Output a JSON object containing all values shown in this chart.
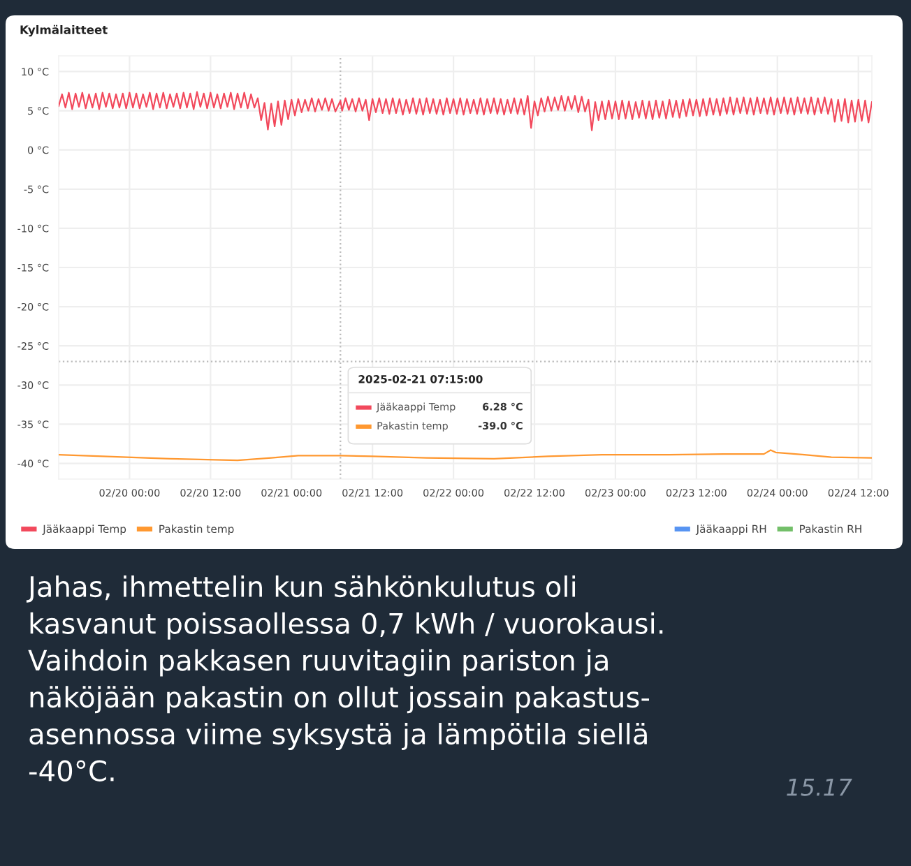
{
  "chart_data": {
    "type": "line",
    "title": "Kylmälaitteet",
    "x": [
      "2025-02-19T13:30",
      "2025-02-19T14:00",
      "2025-02-19T14:30",
      "2025-02-19T15:00",
      "2025-02-19T15:30",
      "2025-02-19T16:00",
      "2025-02-19T16:30",
      "2025-02-19T17:00",
      "2025-02-19T17:30",
      "2025-02-19T18:00",
      "2025-02-19T18:30",
      "2025-02-19T19:00",
      "2025-02-19T19:30",
      "2025-02-19T20:00",
      "2025-02-19T20:30",
      "2025-02-19T21:00",
      "2025-02-19T21:30",
      "2025-02-19T22:00",
      "2025-02-19T22:30",
      "2025-02-19T23:00",
      "2025-02-19T23:30",
      "2025-02-20T00:00",
      "2025-02-20T00:30",
      "2025-02-20T01:00",
      "2025-02-20T01:30",
      "2025-02-20T02:00",
      "2025-02-20T02:30",
      "2025-02-20T03:00",
      "2025-02-20T03:30",
      "2025-02-20T04:00",
      "2025-02-20T04:30",
      "2025-02-20T05:00",
      "2025-02-20T05:30",
      "2025-02-20T06:00",
      "2025-02-20T06:30",
      "2025-02-20T07:00",
      "2025-02-20T07:30",
      "2025-02-20T08:00",
      "2025-02-20T08:30",
      "2025-02-20T09:00",
      "2025-02-20T09:30",
      "2025-02-20T10:00",
      "2025-02-20T10:30",
      "2025-02-20T11:00",
      "2025-02-20T11:30",
      "2025-02-20T12:00",
      "2025-02-20T12:30",
      "2025-02-20T13:00",
      "2025-02-20T13:30",
      "2025-02-20T14:00",
      "2025-02-20T14:30",
      "2025-02-20T15:00",
      "2025-02-20T15:30",
      "2025-02-20T16:00",
      "2025-02-20T16:30",
      "2025-02-20T17:00",
      "2025-02-20T17:30",
      "2025-02-20T18:00",
      "2025-02-20T18:30",
      "2025-02-20T19:00",
      "2025-02-20T19:30",
      "2025-02-20T20:00",
      "2025-02-20T20:30",
      "2025-02-20T21:00",
      "2025-02-20T21:30",
      "2025-02-20T22:00",
      "2025-02-20T22:30",
      "2025-02-20T23:00",
      "2025-02-20T23:30",
      "2025-02-21T00:00",
      "2025-02-21T00:30",
      "2025-02-21T01:00",
      "2025-02-21T01:30",
      "2025-02-21T02:00",
      "2025-02-21T02:30",
      "2025-02-21T03:00",
      "2025-02-21T03:30",
      "2025-02-21T04:00",
      "2025-02-21T04:30",
      "2025-02-21T05:00",
      "2025-02-21T05:30",
      "2025-02-21T06:00",
      "2025-02-21T06:30",
      "2025-02-21T07:15",
      "2025-02-21T07:30",
      "2025-02-21T08:00",
      "2025-02-21T08:30",
      "2025-02-21T09:00",
      "2025-02-21T09:30",
      "2025-02-21T10:00",
      "2025-02-21T10:30",
      "2025-02-21T11:00",
      "2025-02-21T11:30",
      "2025-02-21T12:00",
      "2025-02-21T12:30",
      "2025-02-21T13:00",
      "2025-02-21T13:30",
      "2025-02-21T14:00",
      "2025-02-21T14:30",
      "2025-02-21T15:00",
      "2025-02-21T15:30",
      "2025-02-21T16:00",
      "2025-02-21T16:30",
      "2025-02-21T17:00",
      "2025-02-21T17:30",
      "2025-02-21T18:00",
      "2025-02-21T18:30",
      "2025-02-21T19:00",
      "2025-02-21T19:30",
      "2025-02-21T20:00",
      "2025-02-21T20:30",
      "2025-02-21T21:00",
      "2025-02-21T21:30",
      "2025-02-21T22:00",
      "2025-02-21T22:30",
      "2025-02-21T23:00",
      "2025-02-21T23:30",
      "2025-02-22T00:00",
      "2025-02-22T00:30",
      "2025-02-22T01:00",
      "2025-02-22T01:30",
      "2025-02-22T02:00",
      "2025-02-22T02:30",
      "2025-02-22T03:00",
      "2025-02-22T03:30",
      "2025-02-22T04:00",
      "2025-02-22T04:30",
      "2025-02-22T05:00",
      "2025-02-22T05:30",
      "2025-02-22T06:00",
      "2025-02-22T06:30",
      "2025-02-22T07:00",
      "2025-02-22T07:30",
      "2025-02-22T08:00",
      "2025-02-22T08:30",
      "2025-02-22T09:00",
      "2025-02-22T09:30",
      "2025-02-22T10:00",
      "2025-02-22T10:30",
      "2025-02-22T11:00",
      "2025-02-22T11:30",
      "2025-02-22T12:00",
      "2025-02-22T12:30",
      "2025-02-22T13:00",
      "2025-02-22T13:30",
      "2025-02-22T14:00",
      "2025-02-22T14:30",
      "2025-02-22T15:00",
      "2025-02-22T15:30",
      "2025-02-22T16:00",
      "2025-02-22T16:30",
      "2025-02-22T17:00",
      "2025-02-22T17:30",
      "2025-02-22T18:00",
      "2025-02-22T18:30",
      "2025-02-22T19:00",
      "2025-02-22T19:30",
      "2025-02-22T20:00",
      "2025-02-22T20:30",
      "2025-02-22T21:00",
      "2025-02-22T21:30",
      "2025-02-22T22:00",
      "2025-02-22T22:30",
      "2025-02-22T23:00",
      "2025-02-22T23:30",
      "2025-02-23T00:00",
      "2025-02-23T00:30",
      "2025-02-23T01:00",
      "2025-02-23T01:30",
      "2025-02-23T02:00",
      "2025-02-23T02:30",
      "2025-02-23T03:00",
      "2025-02-23T03:30",
      "2025-02-23T04:00",
      "2025-02-23T04:30",
      "2025-02-23T05:00",
      "2025-02-23T05:30",
      "2025-02-23T06:00",
      "2025-02-23T06:30",
      "2025-02-23T07:00",
      "2025-02-23T07:30",
      "2025-02-23T08:00",
      "2025-02-23T08:30",
      "2025-02-23T09:00",
      "2025-02-23T09:30",
      "2025-02-23T10:00",
      "2025-02-23T10:30",
      "2025-02-23T11:00",
      "2025-02-23T11:30",
      "2025-02-23T12:00",
      "2025-02-23T12:30",
      "2025-02-23T13:00",
      "2025-02-23T13:30",
      "2025-02-23T14:00",
      "2025-02-23T14:30",
      "2025-02-23T15:00",
      "2025-02-23T15:30",
      "2025-02-23T16:00",
      "2025-02-23T16:30",
      "2025-02-23T17:00",
      "2025-02-23T17:30",
      "2025-02-23T18:00",
      "2025-02-23T18:30",
      "2025-02-23T19:00",
      "2025-02-23T19:30",
      "2025-02-23T20:00",
      "2025-02-23T20:30",
      "2025-02-23T21:00",
      "2025-02-23T21:30",
      "2025-02-23T22:00",
      "2025-02-23T22:30",
      "2025-02-23T23:00",
      "2025-02-23T23:30",
      "2025-02-24T00:00",
      "2025-02-24T00:30",
      "2025-02-24T01:00",
      "2025-02-24T01:30",
      "2025-02-24T02:00",
      "2025-02-24T02:30",
      "2025-02-24T03:00",
      "2025-02-24T03:30",
      "2025-02-24T04:00",
      "2025-02-24T04:30",
      "2025-02-24T05:00",
      "2025-02-24T05:30",
      "2025-02-24T06:00",
      "2025-02-24T06:30",
      "2025-02-24T07:00",
      "2025-02-24T07:30",
      "2025-02-24T08:00",
      "2025-02-24T08:30",
      "2025-02-24T09:00",
      "2025-02-24T09:30",
      "2025-02-24T10:00",
      "2025-02-24T10:30",
      "2025-02-24T11:00",
      "2025-02-24T11:30",
      "2025-02-24T12:00",
      "2025-02-24T12:30",
      "2025-02-24T13:00",
      "2025-02-24T13:30",
      "2025-02-24T14:00"
    ],
    "series": [
      {
        "name": "Jääkaappi Temp",
        "color": "#f2495c",
        "values": [
          5.6,
          7.1,
          5.4,
          7.3,
          5.2,
          7.2,
          5.5,
          7.3,
          5.3,
          7.1,
          5.4,
          7.2,
          5.2,
          7.3,
          5.5,
          7.2,
          5.3,
          7.1,
          5.4,
          7.2,
          5.3,
          7.3,
          5.4,
          7.2,
          5.3,
          7.1,
          5.5,
          7.3,
          5.2,
          7.2,
          5.4,
          7.3,
          5.3,
          7.1,
          5.5,
          7.2,
          5.3,
          7.3,
          5.4,
          7.2,
          5.2,
          7.4,
          5.5,
          7.2,
          5.3,
          7.3,
          5.4,
          7.1,
          5.3,
          7.2,
          5.5,
          7.3,
          5.2,
          7.2,
          5.4,
          7.3,
          5.3,
          7.1,
          5.4,
          6.6,
          3.8,
          6.0,
          2.6,
          5.9,
          3.0,
          6.2,
          3.2,
          6.3,
          3.9,
          6.4,
          4.4,
          6.5,
          4.8,
          6.4,
          5.0,
          6.6,
          4.9,
          6.5,
          5.1,
          6.6,
          5.0,
          6.5,
          4.9,
          6.28,
          5.0,
          6.6,
          5.1,
          6.5,
          4.9,
          6.6,
          5.0,
          6.4,
          3.8,
          6.5,
          4.8,
          6.6,
          4.7,
          6.5,
          4.6,
          6.6,
          4.7,
          6.5,
          4.5,
          6.4,
          4.7,
          6.6,
          4.6,
          6.5,
          4.5,
          6.6,
          4.7,
          6.5,
          4.6,
          6.4,
          4.5,
          6.6,
          4.7,
          6.5,
          4.6,
          6.6,
          4.5,
          6.5,
          4.7,
          6.4,
          4.6,
          6.6,
          4.5,
          6.5,
          4.7,
          6.6,
          4.6,
          6.5,
          4.5,
          6.4,
          4.7,
          6.6,
          4.6,
          6.5,
          4.5,
          6.9,
          2.8,
          6.2,
          4.4,
          6.6,
          4.9,
          6.8,
          5.0,
          6.7,
          5.1,
          6.9,
          5.0,
          6.8,
          5.2,
          6.9,
          4.8,
          6.8,
          4.9,
          6.4,
          2.5,
          6.1,
          3.8,
          6.2,
          3.9,
          6.3,
          4.0,
          6.2,
          3.9,
          6.3,
          4.0,
          6.2,
          3.9,
          6.1,
          4.1,
          6.3,
          4.0,
          6.2,
          3.9,
          6.3,
          4.1,
          6.2,
          4.0,
          6.4,
          4.2,
          6.3,
          4.1,
          6.4,
          4.3,
          6.5,
          4.4,
          6.4,
          4.3,
          6.5,
          4.4,
          6.6,
          4.5,
          6.5,
          4.4,
          6.6,
          4.6,
          6.7,
          4.5,
          6.6,
          4.7,
          6.7,
          4.6,
          6.6,
          4.5,
          6.7,
          4.7,
          6.6,
          4.6,
          6.7,
          4.5,
          6.6,
          4.7,
          6.7,
          4.6,
          6.6,
          4.5,
          6.7,
          4.7,
          6.6,
          4.6,
          6.7,
          4.5,
          6.6,
          4.7,
          6.7,
          4.6,
          6.5,
          3.6,
          6.4,
          3.7,
          6.5,
          3.5,
          6.3,
          3.6,
          6.4,
          3.7,
          6.3,
          3.5,
          6.1
        ]
      },
      {
        "name": "Pakastin temp",
        "color": "#ff9830",
        "x": [
          "2025-02-19T13:30",
          "2025-02-19T20:00",
          "2025-02-20T06:00",
          "2025-02-20T16:00",
          "2025-02-20T21:00",
          "2025-02-21T01:00",
          "2025-02-21T07:15",
          "2025-02-21T12:00",
          "2025-02-21T20:00",
          "2025-02-22T06:00",
          "2025-02-22T14:00",
          "2025-02-22T22:00",
          "2025-02-23T08:00",
          "2025-02-23T16:00",
          "2025-02-23T22:00",
          "2025-02-23T23:00",
          "2025-02-23T23:45",
          "2025-02-24T04:00",
          "2025-02-24T08:00",
          "2025-02-24T14:00"
        ],
        "values": [
          -38.9,
          -39.1,
          -39.4,
          -39.6,
          -39.3,
          -39.0,
          -39.0,
          -39.1,
          -39.3,
          -39.4,
          -39.1,
          -38.9,
          -38.9,
          -38.8,
          -38.8,
          -38.3,
          -38.6,
          -38.9,
          -39.2,
          -39.3
        ]
      },
      {
        "name": "Jääkaappi RH",
        "color": "#5794f2",
        "values": [
          null,
          null,
          null,
          null,
          null,
          null,
          null,
          null,
          null,
          null,
          null,
          null,
          null,
          null,
          null,
          null,
          null,
          null,
          null,
          null,
          null,
          null,
          null,
          null,
          null,
          null,
          null,
          null,
          null,
          null,
          null,
          null,
          null,
          null,
          null,
          null,
          null,
          null,
          null,
          null,
          null,
          null,
          null,
          null,
          null,
          null,
          null,
          null,
          null,
          null,
          null,
          null,
          null,
          null,
          null,
          null,
          null,
          null,
          null,
          null,
          null,
          null,
          null,
          null,
          null,
          null,
          null,
          null,
          null,
          null,
          null,
          null,
          null,
          null,
          null,
          null,
          null,
          null,
          null,
          null,
          null,
          null,
          null,
          null,
          null,
          null,
          null,
          null,
          null,
          null,
          null,
          null,
          null,
          null,
          null,
          null,
          null,
          null,
          null,
          null,
          null,
          null,
          null,
          null,
          null,
          null,
          null,
          null,
          null,
          null,
          null,
          null,
          null,
          null,
          null,
          null,
          null,
          null,
          null,
          null,
          null,
          null,
          null,
          null,
          null,
          null,
          null,
          null,
          null,
          null,
          null,
          null,
          null,
          null,
          null,
          null,
          null,
          null,
          null,
          null,
          null,
          null,
          null,
          null,
          null,
          null,
          null,
          null,
          null,
          null,
          null,
          null,
          null,
          null,
          null,
          null,
          null,
          null,
          null,
          null,
          null,
          null,
          null,
          null,
          null,
          null,
          null,
          null,
          null,
          null,
          null,
          null,
          null,
          null,
          null,
          null,
          null,
          null,
          null,
          null,
          null,
          null,
          null,
          null,
          null,
          null,
          null,
          null,
          null,
          null,
          null,
          null,
          null,
          null,
          null,
          null,
          null,
          null,
          null,
          null,
          null,
          null,
          null,
          null,
          null,
          null,
          null,
          null,
          null,
          null,
          null,
          null,
          null,
          null,
          null,
          null,
          null,
          null,
          null,
          null,
          null,
          null,
          null,
          null,
          null,
          null,
          null,
          null,
          null,
          null,
          null,
          null,
          null,
          null,
          null,
          null,
          null,
          null,
          null,
          null,
          null,
          null
        ]
      },
      {
        "name": "Pakastin RH",
        "color": "#73bf69",
        "values": [
          null,
          null,
          null,
          null,
          null,
          null,
          null,
          null,
          null,
          null,
          null,
          null,
          null,
          null,
          null,
          null,
          null,
          null,
          null,
          null,
          null,
          null,
          null,
          null,
          null,
          null,
          null,
          null,
          null,
          null,
          null,
          null,
          null,
          null,
          null,
          null,
          null,
          null,
          null,
          null,
          null,
          null,
          null,
          null,
          null,
          null,
          null,
          null,
          null,
          null,
          null,
          null,
          null,
          null,
          null,
          null,
          null,
          null,
          null,
          null,
          null,
          null,
          null,
          null,
          null,
          null,
          null,
          null,
          null,
          null,
          null,
          null,
          null,
          null,
          null,
          null,
          null,
          null,
          null,
          null,
          null,
          null,
          null,
          null,
          null,
          null,
          null,
          null,
          null,
          null,
          null,
          null,
          null,
          null,
          null,
          null,
          null,
          null,
          null,
          null,
          null,
          null,
          null,
          null,
          null,
          null,
          null,
          null,
          null,
          null,
          null,
          null,
          null,
          null,
          null,
          null,
          null,
          null,
          null,
          null,
          null,
          null,
          null,
          null,
          null,
          null,
          null,
          null,
          null,
          null,
          null,
          null,
          null,
          null,
          null,
          null,
          null,
          null,
          null,
          null,
          null,
          null,
          null,
          null,
          null,
          null,
          null,
          null,
          null,
          null,
          null,
          null,
          null,
          null,
          null,
          null,
          null,
          null,
          null,
          null,
          null,
          null,
          null,
          null,
          null,
          null,
          null,
          null,
          null,
          null,
          null,
          null,
          null,
          null,
          null,
          null,
          null,
          null,
          null,
          null,
          null,
          null,
          null,
          null,
          null,
          null,
          null,
          null,
          null,
          null,
          null,
          null,
          null,
          null,
          null,
          null,
          null,
          null,
          null,
          null,
          null,
          null,
          null,
          null,
          null,
          null,
          null,
          null,
          null,
          null,
          null,
          null,
          null,
          null,
          null,
          null,
          null,
          null,
          null,
          null,
          null,
          null,
          null,
          null,
          null,
          null,
          null,
          null,
          null,
          null,
          null,
          null,
          null,
          null,
          null,
          null,
          null,
          null,
          null,
          null,
          null,
          null
        ]
      }
    ],
    "xlim": [
      "2025-02-19T13:30",
      "2025-02-24T14:00"
    ],
    "xticks": [
      {
        "value": "2025-02-20T00:00",
        "label": "02/20 00:00"
      },
      {
        "value": "2025-02-20T12:00",
        "label": "02/20 12:00"
      },
      {
        "value": "2025-02-21T00:00",
        "label": "02/21 00:00"
      },
      {
        "value": "2025-02-21T12:00",
        "label": "02/21 12:00"
      },
      {
        "value": "2025-02-22T00:00",
        "label": "02/22 00:00"
      },
      {
        "value": "2025-02-22T12:00",
        "label": "02/22 12:00"
      },
      {
        "value": "2025-02-23T00:00",
        "label": "02/23 00:00"
      },
      {
        "value": "2025-02-23T12:00",
        "label": "02/23 12:00"
      },
      {
        "value": "2025-02-24T00:00",
        "label": "02/24 00:00"
      },
      {
        "value": "2025-02-24T12:00",
        "label": "02/24 12:00"
      }
    ],
    "ylim": [
      -42,
      12
    ],
    "yticks": [
      {
        "value": 10,
        "label": "10 °C"
      },
      {
        "value": 5,
        "label": "5 °C"
      },
      {
        "value": 0,
        "label": "0 °C"
      },
      {
        "value": -5,
        "label": "-5 °C"
      },
      {
        "value": -10,
        "label": "-10 °C"
      },
      {
        "value": -15,
        "label": "-15 °C"
      },
      {
        "value": -20,
        "label": "-20 °C"
      },
      {
        "value": -25,
        "label": "-25 °C"
      },
      {
        "value": -30,
        "label": "-30 °C"
      },
      {
        "value": -35,
        "label": "-35 °C"
      },
      {
        "value": -40,
        "label": "-40 °C"
      }
    ],
    "ref_lines": [
      {
        "axis": "x",
        "value": "2025-02-21T07:15",
        "color": "#bbbbbb",
        "line_style": "dotted"
      },
      {
        "axis": "y",
        "value": -27,
        "color": "#bbbbbb",
        "line_style": "dotted"
      }
    ],
    "annotations": [
      "2025-02-21 07:15:00",
      "6.28 °C",
      "-39.0 °C",
      "Jahas, ihmettelin kun sähkönkulutus oli\nkasvanut poissaollessa 0,7 kWh / vuorokausi.\nVaihdoin pakkasen ruuvitagiin pariston ja\nnäköjään pakastin on ollut jossain pakastus-\nasennossa viime syksystä ja lämpötila siellä\n-40°C.",
      "15.17"
    ],
    "grid": true,
    "legend": "bottom",
    "marker": "none",
    "line_style": "solid"
  }
}
